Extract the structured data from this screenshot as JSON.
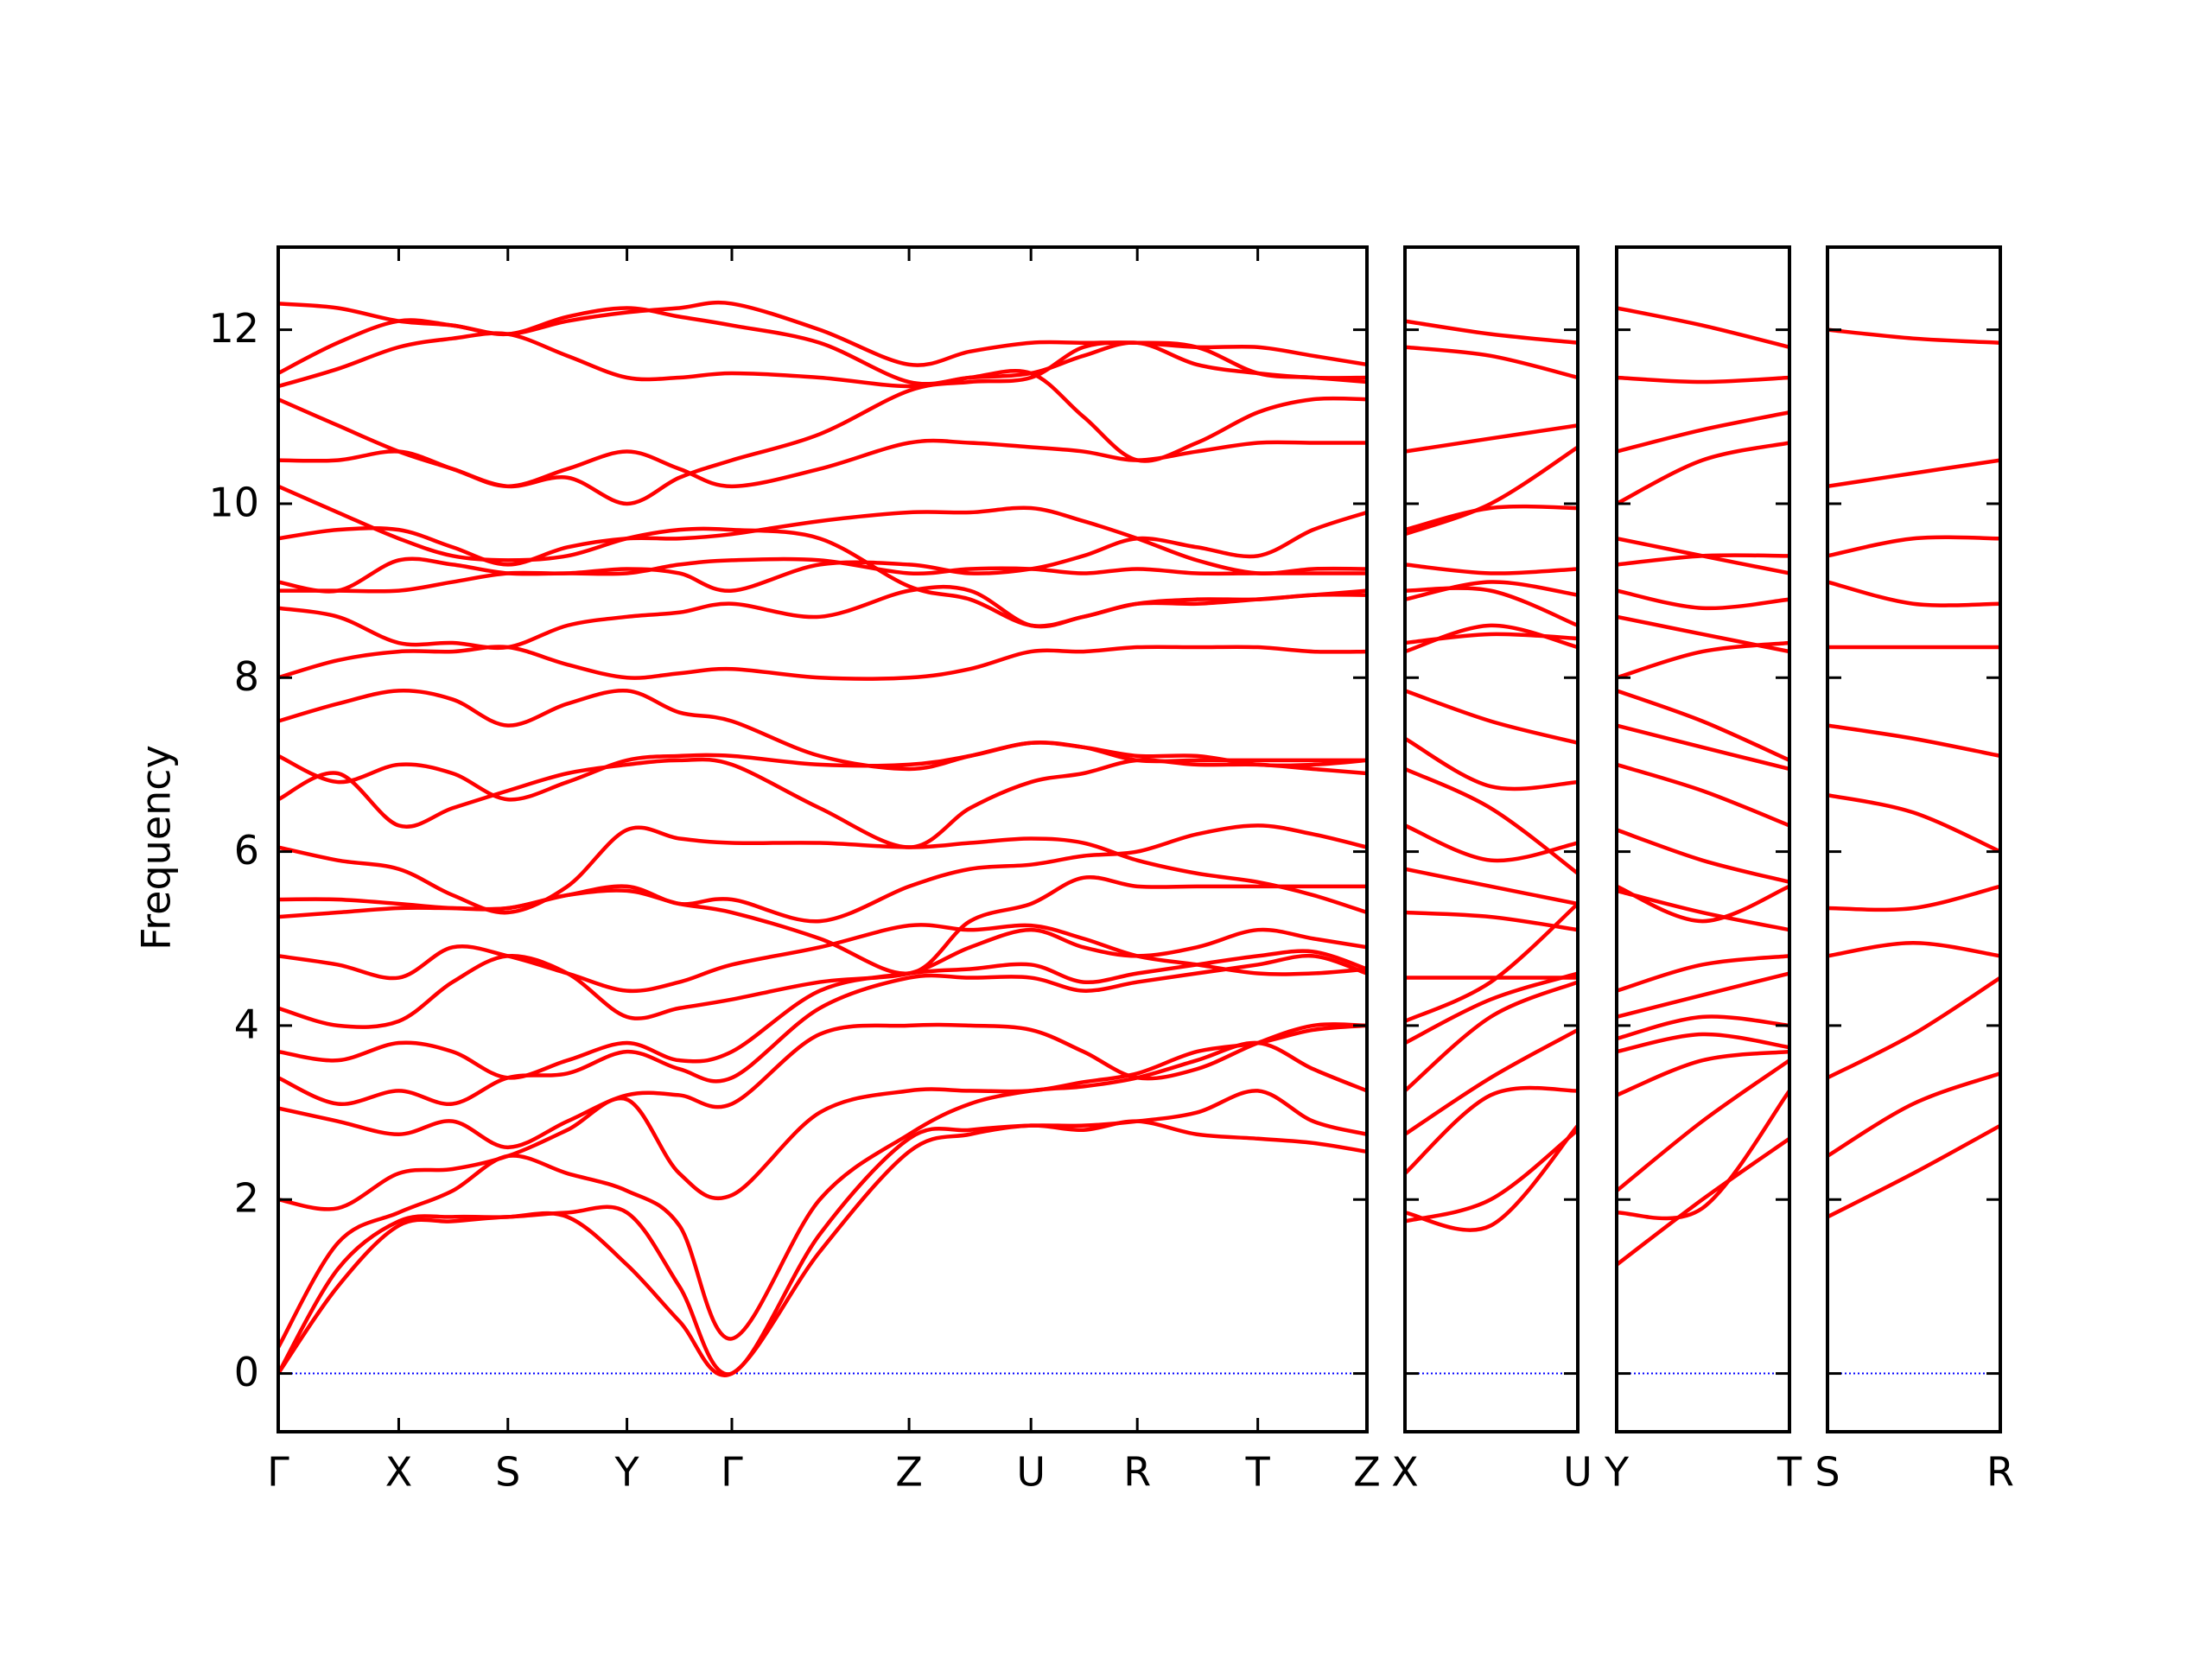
{
  "chart_data": [
    {
      "type": "line",
      "y_label": "Frequency",
      "color": "#ff0000",
      "zero_line": {
        "value": 0,
        "color": "#0000ff"
      },
      "xlim": [
        0,
        768
      ],
      "ylim": [
        -0.67,
        12.95
      ],
      "yticks": [
        0,
        2,
        4,
        6,
        8,
        10,
        12
      ],
      "xticks": [
        {
          "value": 0,
          "label": "Γ"
        },
        {
          "value": 85,
          "label": "X"
        },
        {
          "value": 162,
          "label": "S"
        },
        {
          "value": 246,
          "label": "Y"
        },
        {
          "value": 320,
          "label": "Γ"
        },
        {
          "value": 445,
          "label": "Z"
        },
        {
          "value": 531,
          "label": "U"
        },
        {
          "value": 606,
          "label": "R"
        },
        {
          "value": 691,
          "label": "T"
        },
        {
          "value": 768,
          "label": "Z"
        }
      ],
      "x": [
        0,
        42,
        85,
        123,
        162,
        204,
        246,
        283,
        320,
        382,
        445,
        488,
        531,
        568,
        606,
        648,
        691,
        730,
        768
      ],
      "series": [
        {
          "values": [
            0,
            1.0,
            1.7,
            1.75,
            1.8,
            1.8,
            1.25,
            0.6,
            0,
            1.4,
            2.55,
            2.75,
            2.85,
            2.8,
            2.9,
            2.75,
            2.7,
            2.65,
            2.55
          ]
        },
        {
          "values": [
            0,
            1.2,
            1.75,
            1.8,
            1.8,
            1.85,
            1.85,
            1.0,
            0,
            1.6,
            2.7,
            2.8,
            2.85,
            2.85,
            2.9,
            3.0,
            3.25,
            2.9,
            2.75
          ]
        },
        {
          "values": [
            0.3,
            1.5,
            1.85,
            2.1,
            2.5,
            2.3,
            2.1,
            1.7,
            0.4,
            2.0,
            2.75,
            3.1,
            3.25,
            3.3,
            3.4,
            3.6,
            3.8,
            3.5,
            3.25
          ]
        },
        {
          "values": [
            2.0,
            1.9,
            2.3,
            2.35,
            2.5,
            2.8,
            3.15,
            2.3,
            2.05,
            3.0,
            3.25,
            3.25,
            3.25,
            3.35,
            3.45,
            3.7,
            3.8,
            3.95,
            4.0
          ]
        },
        {
          "values": [
            3.05,
            2.9,
            2.75,
            2.9,
            2.6,
            2.9,
            3.2,
            3.2,
            3.1,
            3.9,
            4.0,
            4.0,
            3.95,
            3.7,
            3.4,
            3.5,
            3.8,
            4.0,
            4.0
          ]
        },
        {
          "values": [
            3.4,
            3.1,
            3.25,
            3.1,
            3.4,
            3.45,
            3.7,
            3.5,
            3.4,
            4.2,
            4.55,
            4.55,
            4.55,
            4.4,
            4.5,
            4.6,
            4.7,
            4.8,
            4.6
          ]
        },
        {
          "values": [
            3.7,
            3.6,
            3.8,
            3.7,
            3.4,
            3.6,
            3.8,
            3.6,
            3.7,
            4.4,
            4.6,
            4.65,
            4.7,
            4.5,
            4.6,
            4.7,
            4.8,
            4.85,
            4.65
          ]
        },
        {
          "values": [
            4.2,
            4.0,
            4.05,
            4.5,
            4.8,
            4.6,
            4.1,
            4.2,
            4.3,
            4.5,
            4.6,
            4.9,
            5.1,
            4.9,
            4.8,
            4.9,
            5.1,
            5.0,
            4.9
          ]
        },
        {
          "values": [
            4.8,
            4.7,
            4.55,
            4.9,
            4.8,
            4.6,
            4.4,
            4.5,
            4.7,
            4.9,
            5.15,
            5.1,
            5.15,
            5.0,
            4.8,
            4.7,
            4.6,
            4.6,
            4.65
          ]
        },
        {
          "values": [
            5.25,
            5.3,
            5.35,
            5.35,
            5.35,
            5.5,
            5.55,
            5.4,
            5.3,
            5.0,
            4.6,
            5.2,
            5.4,
            5.7,
            5.6,
            5.6,
            5.6,
            5.6,
            5.6
          ]
        },
        {
          "values": [
            5.45,
            5.45,
            5.4,
            5.35,
            5.35,
            5.5,
            5.6,
            5.4,
            5.45,
            5.2,
            5.6,
            5.8,
            5.85,
            5.95,
            6.0,
            6.2,
            6.3,
            6.2,
            6.05
          ]
        },
        {
          "values": [
            6.05,
            5.9,
            5.8,
            5.5,
            5.3,
            5.6,
            6.25,
            6.15,
            6.1,
            6.1,
            6.05,
            6.1,
            6.15,
            6.1,
            5.9,
            5.75,
            5.65,
            5.5,
            5.3
          ]
        },
        {
          "values": [
            6.6,
            6.9,
            6.3,
            6.5,
            6.7,
            6.9,
            7.0,
            7.05,
            7.0,
            6.5,
            6.05,
            6.5,
            6.8,
            6.9,
            7.05,
            7.0,
            7.0,
            6.95,
            6.9
          ]
        },
        {
          "values": [
            7.1,
            6.8,
            7.0,
            6.9,
            6.6,
            6.8,
            7.05,
            7.1,
            7.1,
            7.0,
            7.0,
            7.1,
            7.25,
            7.2,
            7.05,
            7.05,
            7.05,
            7.05,
            7.05
          ]
        },
        {
          "values": [
            7.5,
            7.7,
            7.85,
            7.75,
            7.45,
            7.7,
            7.85,
            7.6,
            7.5,
            7.1,
            6.95,
            7.1,
            7.25,
            7.2,
            7.1,
            7.1,
            7.0,
            7.0,
            7.05
          ]
        },
        {
          "values": [
            8.0,
            8.2,
            8.3,
            8.3,
            8.35,
            8.15,
            8.0,
            8.05,
            8.1,
            8.0,
            8.0,
            8.1,
            8.3,
            8.3,
            8.35,
            8.35,
            8.35,
            8.3,
            8.3
          ]
        },
        {
          "values": [
            8.8,
            8.7,
            8.4,
            8.4,
            8.35,
            8.6,
            8.7,
            8.75,
            8.85,
            8.7,
            9.0,
            9.0,
            8.6,
            8.7,
            8.85,
            8.85,
            8.9,
            8.95,
            9.0
          ]
        },
        {
          "values": [
            9.0,
            9.0,
            9.0,
            9.1,
            9.2,
            9.2,
            9.25,
            9.2,
            9.0,
            9.3,
            9.3,
            9.2,
            9.25,
            9.4,
            9.6,
            9.5,
            9.4,
            9.7,
            9.9
          ]
        },
        {
          "values": [
            9.1,
            9.0,
            9.35,
            9.3,
            9.2,
            9.2,
            9.2,
            9.3,
            9.35,
            9.35,
            9.2,
            9.25,
            9.25,
            9.2,
            9.25,
            9.2,
            9.2,
            9.2,
            9.2
          ]
        },
        {
          "values": [
            9.6,
            9.7,
            9.7,
            9.5,
            9.3,
            9.5,
            9.6,
            9.6,
            9.65,
            9.8,
            9.9,
            9.9,
            9.95,
            9.8,
            9.6,
            9.35,
            9.2,
            9.25,
            9.25
          ]
        },
        {
          "values": [
            10.2,
            9.9,
            9.6,
            9.4,
            9.35,
            9.4,
            9.6,
            9.7,
            9.7,
            9.6,
            9.05,
            8.9,
            8.6,
            8.7,
            8.85,
            8.9,
            8.9,
            8.95,
            8.95
          ]
        },
        {
          "values": [
            10.5,
            10.5,
            10.6,
            10.4,
            10.2,
            10.3,
            10.0,
            10.3,
            10.5,
            10.8,
            11.3,
            11.4,
            11.45,
            11.8,
            11.85,
            11.8,
            11.5,
            11.45,
            11.4
          ]
        },
        {
          "values": [
            11.2,
            10.9,
            10.6,
            10.4,
            10.2,
            10.4,
            10.6,
            10.4,
            10.2,
            10.4,
            10.7,
            10.7,
            10.65,
            10.6,
            10.5,
            10.6,
            10.7,
            10.7,
            10.7
          ]
        },
        {
          "values": [
            11.35,
            11.55,
            11.8,
            11.9,
            11.95,
            11.7,
            11.45,
            11.45,
            11.5,
            11.45,
            11.35,
            11.45,
            11.5,
            11.0,
            10.5,
            10.7,
            11.05,
            11.2,
            11.2
          ]
        },
        {
          "values": [
            11.5,
            11.85,
            12.1,
            12.05,
            11.95,
            12.1,
            12.2,
            12.25,
            12.3,
            12.0,
            11.6,
            11.75,
            11.85,
            11.85,
            11.85,
            11.8,
            11.8,
            11.7,
            11.6
          ]
        },
        {
          "values": [
            12.3,
            12.25,
            12.1,
            12.05,
            11.95,
            12.15,
            12.25,
            12.15,
            12.05,
            11.85,
            11.4,
            11.45,
            11.5,
            11.7,
            11.85,
            11.6,
            11.5,
            11.45,
            11.45
          ]
        }
      ]
    },
    {
      "type": "line",
      "color": "#ff0000",
      "zero_line": {
        "value": 0,
        "color": "#0000ff"
      },
      "xlim": [
        0,
        121
      ],
      "ylim": [
        -0.67,
        12.95
      ],
      "xticks": [
        {
          "value": 0,
          "label": "X"
        },
        {
          "value": 121,
          "label": "U"
        }
      ],
      "x": [
        0,
        60,
        121
      ],
      "series": [
        {
          "values": [
            1.85,
            1.7,
            2.85
          ]
        },
        {
          "values": [
            1.75,
            2.0,
            2.8
          ]
        },
        {
          "values": [
            2.3,
            3.2,
            3.25
          ]
        },
        {
          "values": [
            2.75,
            3.4,
            3.95
          ]
        },
        {
          "values": [
            3.25,
            4.1,
            4.5
          ]
        },
        {
          "values": [
            3.8,
            4.3,
            4.6
          ]
        },
        {
          "values": [
            4.05,
            4.5,
            5.4
          ]
        },
        {
          "values": [
            4.55,
            4.55,
            4.55
          ]
        },
        {
          "values": [
            5.3,
            5.25,
            5.1
          ]
        },
        {
          "values": [
            5.8,
            5.6,
            5.4
          ]
        },
        {
          "values": [
            6.3,
            5.9,
            6.1
          ]
        },
        {
          "values": [
            6.95,
            6.5,
            5.75
          ]
        },
        {
          "values": [
            7.3,
            6.75,
            6.8
          ]
        },
        {
          "values": [
            7.85,
            7.5,
            7.25
          ]
        },
        {
          "values": [
            8.3,
            8.6,
            8.35
          ]
        },
        {
          "values": [
            8.4,
            8.5,
            8.45
          ]
        },
        {
          "values": [
            9.0,
            9.0,
            8.6
          ]
        },
        {
          "values": [
            8.9,
            9.1,
            8.95
          ]
        },
        {
          "values": [
            9.3,
            9.2,
            9.25
          ]
        },
        {
          "values": [
            9.7,
            9.95,
            9.95
          ]
        },
        {
          "values": [
            9.65,
            10.0,
            10.65
          ]
        },
        {
          "values": [
            10.6,
            10.75,
            10.9
          ]
        },
        {
          "values": [
            11.8,
            11.7,
            11.45
          ]
        },
        {
          "values": [
            12.1,
            11.95,
            11.85
          ]
        }
      ]
    },
    {
      "type": "line",
      "color": "#ff0000",
      "zero_line": {
        "value": 0,
        "color": "#0000ff"
      },
      "xlim": [
        0,
        121
      ],
      "ylim": [
        -0.67,
        12.95
      ],
      "xticks": [
        {
          "value": 0,
          "label": "Y"
        },
        {
          "value": 121,
          "label": "T"
        }
      ],
      "x": [
        0,
        60,
        121
      ],
      "series": [
        {
          "values": [
            1.25,
            2.0,
            2.7
          ]
        },
        {
          "values": [
            1.85,
            1.9,
            3.25
          ]
        },
        {
          "values": [
            2.1,
            2.9,
            3.6
          ]
        },
        {
          "values": [
            3.2,
            3.6,
            3.7
          ]
        },
        {
          "values": [
            3.7,
            3.9,
            3.75
          ]
        },
        {
          "values": [
            3.85,
            4.1,
            4.0
          ]
        },
        {
          "values": [
            4.1,
            4.35,
            4.6
          ]
        },
        {
          "values": [
            4.4,
            4.7,
            4.8
          ]
        },
        {
          "values": [
            5.55,
            5.3,
            5.1
          ]
        },
        {
          "values": [
            5.6,
            5.2,
            5.6
          ]
        },
        {
          "values": [
            6.25,
            5.9,
            5.65
          ]
        },
        {
          "values": [
            7.0,
            6.7,
            6.3
          ]
        },
        {
          "values": [
            7.45,
            7.2,
            6.95
          ]
        },
        {
          "values": [
            7.85,
            7.5,
            7.05
          ]
        },
        {
          "values": [
            8.0,
            8.3,
            8.4
          ]
        },
        {
          "values": [
            8.7,
            8.5,
            8.3
          ]
        },
        {
          "values": [
            9.0,
            8.8,
            8.9
          ]
        },
        {
          "values": [
            9.3,
            9.4,
            9.4
          ]
        },
        {
          "values": [
            9.6,
            9.4,
            9.2
          ]
        },
        {
          "values": [
            10.0,
            10.5,
            10.7
          ]
        },
        {
          "values": [
            10.6,
            10.85,
            11.05
          ]
        },
        {
          "values": [
            11.45,
            11.4,
            11.45
          ]
        },
        {
          "values": [
            12.25,
            12.05,
            11.8
          ]
        }
      ]
    },
    {
      "type": "line",
      "color": "#ff0000",
      "zero_line": {
        "value": 0,
        "color": "#0000ff"
      },
      "xlim": [
        0,
        121
      ],
      "ylim": [
        -0.67,
        12.95
      ],
      "xticks": [
        {
          "value": 0,
          "label": "S"
        },
        {
          "value": 121,
          "label": "R"
        }
      ],
      "x": [
        0,
        60,
        121
      ],
      "series": [
        {
          "values": [
            1.8,
            2.3,
            2.85
          ]
        },
        {
          "values": [
            2.5,
            3.1,
            3.45
          ]
        },
        {
          "values": [
            3.4,
            3.9,
            4.55
          ]
        },
        {
          "values": [
            4.8,
            4.95,
            4.8
          ]
        },
        {
          "values": [
            5.35,
            5.35,
            5.6
          ]
        },
        {
          "values": [
            6.65,
            6.45,
            6.0
          ]
        },
        {
          "values": [
            7.45,
            7.3,
            7.1
          ]
        },
        {
          "values": [
            8.35,
            8.35,
            8.35
          ]
        },
        {
          "values": [
            9.1,
            8.85,
            8.85
          ]
        },
        {
          "values": [
            9.4,
            9.6,
            9.6
          ]
        },
        {
          "values": [
            10.2,
            10.35,
            10.5
          ]
        },
        {
          "values": [
            12.0,
            11.9,
            11.85
          ]
        }
      ]
    }
  ]
}
